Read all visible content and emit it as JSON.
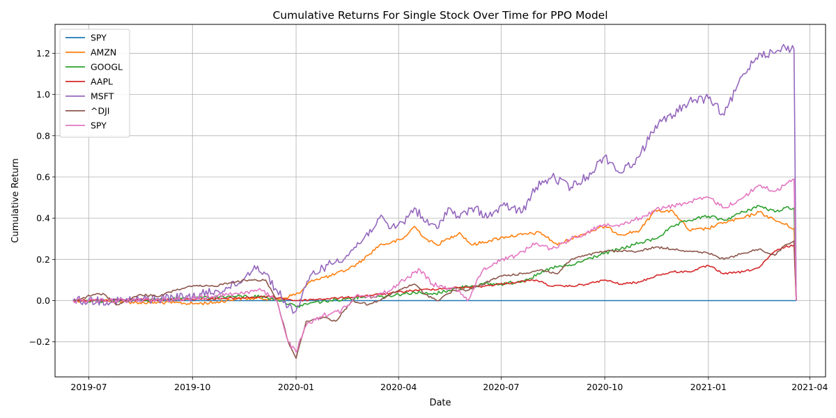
{
  "chart_data": {
    "type": "line",
    "title": "Cumulative Returns For Single Stock Over Time for PPO Model",
    "xlabel": "Date",
    "ylabel": "Cumulative Return",
    "grid": true,
    "legend_position": "top-left",
    "xlim": [
      "2019-06-01",
      "2021-04-15"
    ],
    "ylim": [
      -0.37,
      1.34
    ],
    "x_ticks": [
      "2019-07-01",
      "2019-10-01",
      "2020-01-01",
      "2020-04-01",
      "2020-07-01",
      "2020-10-01",
      "2021-01-01",
      "2021-04-01"
    ],
    "x_tick_labels": [
      "2019-07",
      "2019-10",
      "2020-01",
      "2020-04",
      "2020-07",
      "2020-10",
      "2021-01",
      "2021-04"
    ],
    "y_ticks": [
      -0.2,
      0.0,
      0.2,
      0.4,
      0.6,
      0.8,
      1.0,
      1.2
    ],
    "y_tick_labels": [
      "−0.2",
      "0.0",
      "0.2",
      "0.4",
      "0.6",
      "0.8",
      "1.0",
      "1.2"
    ],
    "series": [
      {
        "name": "SPY",
        "color": "#1f77b4",
        "points": [
          [
            "2019-06-17",
            0.0
          ],
          [
            "2021-03-20",
            0.0
          ]
        ]
      },
      {
        "name": "AMZN",
        "color": "#ff7f0e",
        "points": [
          [
            "2019-06-17",
            0.0
          ],
          [
            "2019-07-15",
            0.0
          ],
          [
            "2019-08-15",
            -0.01
          ],
          [
            "2019-09-15",
            -0.01
          ],
          [
            "2019-10-01",
            -0.015
          ],
          [
            "2019-10-20",
            -0.01
          ],
          [
            "2019-11-10",
            0.01
          ],
          [
            "2019-12-01",
            0.01
          ],
          [
            "2019-12-20",
            0.01
          ],
          [
            "2020-01-05",
            0.04
          ],
          [
            "2020-01-15",
            0.1
          ],
          [
            "2020-02-01",
            0.12
          ],
          [
            "2020-02-15",
            0.15
          ],
          [
            "2020-02-25",
            0.18
          ],
          [
            "2020-03-05",
            0.22
          ],
          [
            "2020-03-15",
            0.27
          ],
          [
            "2020-03-25",
            0.28
          ],
          [
            "2020-04-05",
            0.3
          ],
          [
            "2020-04-15",
            0.36
          ],
          [
            "2020-04-25",
            0.3
          ],
          [
            "2020-05-05",
            0.27
          ],
          [
            "2020-05-15",
            0.3
          ],
          [
            "2020-05-25",
            0.33
          ],
          [
            "2020-06-05",
            0.27
          ],
          [
            "2020-06-20",
            0.29
          ],
          [
            "2020-07-05",
            0.31
          ],
          [
            "2020-07-20",
            0.32
          ],
          [
            "2020-08-05",
            0.33
          ],
          [
            "2020-08-20",
            0.27
          ],
          [
            "2020-09-01",
            0.3
          ],
          [
            "2020-09-15",
            0.33
          ],
          [
            "2020-10-01",
            0.36
          ],
          [
            "2020-10-15",
            0.32
          ],
          [
            "2020-11-01",
            0.34
          ],
          [
            "2020-11-15",
            0.44
          ],
          [
            "2020-12-01",
            0.43
          ],
          [
            "2020-12-15",
            0.34
          ],
          [
            "2021-01-01",
            0.35
          ],
          [
            "2021-01-15",
            0.38
          ],
          [
            "2021-02-01",
            0.4
          ],
          [
            "2021-02-15",
            0.43
          ],
          [
            "2021-03-01",
            0.39
          ],
          [
            "2021-03-10",
            0.37
          ],
          [
            "2021-03-18",
            0.35
          ],
          [
            "2021-03-20",
            0.0
          ]
        ]
      },
      {
        "name": "GOOGL",
        "color": "#2ca02c",
        "points": [
          [
            "2019-06-17",
            0.0
          ],
          [
            "2019-08-01",
            0.0
          ],
          [
            "2019-09-01",
            0.005
          ],
          [
            "2019-10-01",
            0.01
          ],
          [
            "2019-11-01",
            0.02
          ],
          [
            "2019-12-01",
            0.02
          ],
          [
            "2019-12-20",
            0.0
          ],
          [
            "2020-01-01",
            -0.03
          ],
          [
            "2020-01-15",
            -0.01
          ],
          [
            "2020-02-01",
            0.0
          ],
          [
            "2020-02-15",
            0.01
          ],
          [
            "2020-03-01",
            0.02
          ],
          [
            "2020-03-15",
            0.02
          ],
          [
            "2020-04-01",
            0.03
          ],
          [
            "2020-04-15",
            0.04
          ],
          [
            "2020-05-01",
            0.03
          ],
          [
            "2020-05-15",
            0.05
          ],
          [
            "2020-06-01",
            0.07
          ],
          [
            "2020-06-15",
            0.08
          ],
          [
            "2020-07-01",
            0.08
          ],
          [
            "2020-07-15",
            0.09
          ],
          [
            "2020-08-01",
            0.12
          ],
          [
            "2020-08-15",
            0.16
          ],
          [
            "2020-09-01",
            0.17
          ],
          [
            "2020-09-15",
            0.2
          ],
          [
            "2020-10-01",
            0.23
          ],
          [
            "2020-10-15",
            0.25
          ],
          [
            "2020-11-01",
            0.28
          ],
          [
            "2020-11-15",
            0.3
          ],
          [
            "2020-12-01",
            0.36
          ],
          [
            "2020-12-15",
            0.39
          ],
          [
            "2021-01-01",
            0.41
          ],
          [
            "2021-01-15",
            0.39
          ],
          [
            "2021-02-01",
            0.43
          ],
          [
            "2021-02-15",
            0.46
          ],
          [
            "2021-03-01",
            0.43
          ],
          [
            "2021-03-10",
            0.45
          ],
          [
            "2021-03-18",
            0.45
          ],
          [
            "2021-03-20",
            0.0
          ]
        ]
      },
      {
        "name": "AAPL",
        "color": "#d62728",
        "points": [
          [
            "2019-06-17",
            0.0
          ],
          [
            "2019-09-01",
            0.005
          ],
          [
            "2019-11-01",
            0.01
          ],
          [
            "2019-12-10",
            0.02
          ],
          [
            "2020-01-01",
            0.0
          ],
          [
            "2020-01-15",
            0.005
          ],
          [
            "2020-02-15",
            0.015
          ],
          [
            "2020-03-15",
            0.03
          ],
          [
            "2020-04-15",
            0.05
          ],
          [
            "2020-05-15",
            0.06
          ],
          [
            "2020-06-15",
            0.07
          ],
          [
            "2020-07-15",
            0.09
          ],
          [
            "2020-08-01",
            0.1
          ],
          [
            "2020-08-15",
            0.07
          ],
          [
            "2020-09-01",
            0.07
          ],
          [
            "2020-09-15",
            0.08
          ],
          [
            "2020-10-01",
            0.1
          ],
          [
            "2020-10-15",
            0.08
          ],
          [
            "2020-11-01",
            0.09
          ],
          [
            "2020-11-15",
            0.12
          ],
          [
            "2020-12-01",
            0.14
          ],
          [
            "2020-12-15",
            0.14
          ],
          [
            "2021-01-01",
            0.17
          ],
          [
            "2021-01-15",
            0.13
          ],
          [
            "2021-02-01",
            0.14
          ],
          [
            "2021-02-15",
            0.16
          ],
          [
            "2021-03-01",
            0.24
          ],
          [
            "2021-03-10",
            0.26
          ],
          [
            "2021-03-18",
            0.27
          ],
          [
            "2021-03-20",
            0.0
          ]
        ]
      },
      {
        "name": "MSFT",
        "color": "#9467bd",
        "points": [
          [
            "2019-06-17",
            0.0
          ],
          [
            "2019-08-01",
            0.0
          ],
          [
            "2019-09-01",
            0.01
          ],
          [
            "2019-10-01",
            0.02
          ],
          [
            "2019-11-01",
            0.06
          ],
          [
            "2019-11-15",
            0.1
          ],
          [
            "2019-11-25",
            0.17
          ],
          [
            "2019-12-05",
            0.13
          ],
          [
            "2019-12-15",
            0.05
          ],
          [
            "2019-12-25",
            -0.03
          ],
          [
            "2020-01-01",
            -0.05
          ],
          [
            "2020-01-15",
            0.13
          ],
          [
            "2020-02-01",
            0.18
          ],
          [
            "2020-02-15",
            0.22
          ],
          [
            "2020-03-01",
            0.3
          ],
          [
            "2020-03-15",
            0.4
          ],
          [
            "2020-03-25",
            0.35
          ],
          [
            "2020-04-05",
            0.38
          ],
          [
            "2020-04-15",
            0.45
          ],
          [
            "2020-04-25",
            0.38
          ],
          [
            "2020-05-05",
            0.35
          ],
          [
            "2020-05-15",
            0.45
          ],
          [
            "2020-05-25",
            0.4
          ],
          [
            "2020-06-05",
            0.45
          ],
          [
            "2020-06-20",
            0.41
          ],
          [
            "2020-07-05",
            0.46
          ],
          [
            "2020-07-20",
            0.43
          ],
          [
            "2020-08-01",
            0.55
          ],
          [
            "2020-08-15",
            0.6
          ],
          [
            "2020-09-01",
            0.55
          ],
          [
            "2020-09-15",
            0.6
          ],
          [
            "2020-10-01",
            0.7
          ],
          [
            "2020-10-15",
            0.62
          ],
          [
            "2020-11-01",
            0.7
          ],
          [
            "2020-11-15",
            0.85
          ],
          [
            "2020-12-01",
            0.9
          ],
          [
            "2020-12-15",
            0.97
          ],
          [
            "2021-01-01",
            0.98
          ],
          [
            "2021-01-15",
            0.9
          ],
          [
            "2021-02-01",
            1.1
          ],
          [
            "2021-02-15",
            1.2
          ],
          [
            "2021-03-01",
            1.2
          ],
          [
            "2021-03-10",
            1.23
          ],
          [
            "2021-03-18",
            1.22
          ],
          [
            "2021-03-20",
            0.0
          ]
        ]
      },
      {
        "name": "^DJI",
        "color": "#8c564b",
        "points": [
          [
            "2019-06-17",
            0.0
          ],
          [
            "2019-06-25",
            0.01
          ],
          [
            "2019-07-05",
            0.03
          ],
          [
            "2019-07-15",
            0.03
          ],
          [
            "2019-07-25",
            -0.02
          ],
          [
            "2019-08-05",
            0.0
          ],
          [
            "2019-08-15",
            0.03
          ],
          [
            "2019-09-01",
            0.02
          ],
          [
            "2019-09-15",
            0.05
          ],
          [
            "2019-10-01",
            0.07
          ],
          [
            "2019-10-20",
            0.07
          ],
          [
            "2019-11-05",
            0.09
          ],
          [
            "2019-11-20",
            0.1
          ],
          [
            "2019-12-05",
            0.1
          ],
          [
            "2019-12-15",
            0.0
          ],
          [
            "2019-12-25",
            -0.2
          ],
          [
            "2020-01-01",
            -0.28
          ],
          [
            "2020-01-10",
            -0.1
          ],
          [
            "2020-01-25",
            -0.08
          ],
          [
            "2020-02-05",
            -0.1
          ],
          [
            "2020-02-20",
            0.0
          ],
          [
            "2020-03-05",
            -0.02
          ],
          [
            "2020-03-15",
            0.0
          ],
          [
            "2020-03-25",
            0.03
          ],
          [
            "2020-04-05",
            0.06
          ],
          [
            "2020-04-15",
            0.08
          ],
          [
            "2020-04-25",
            0.03
          ],
          [
            "2020-05-05",
            0.0
          ],
          [
            "2020-05-20",
            0.05
          ],
          [
            "2020-06-01",
            0.05
          ],
          [
            "2020-06-15",
            0.08
          ],
          [
            "2020-07-01",
            0.12
          ],
          [
            "2020-07-20",
            0.13
          ],
          [
            "2020-08-05",
            0.15
          ],
          [
            "2020-08-20",
            0.13
          ],
          [
            "2020-09-01",
            0.2
          ],
          [
            "2020-09-15",
            0.22
          ],
          [
            "2020-10-01",
            0.24
          ],
          [
            "2020-10-15",
            0.24
          ],
          [
            "2020-11-01",
            0.24
          ],
          [
            "2020-11-15",
            0.26
          ],
          [
            "2020-12-01",
            0.25
          ],
          [
            "2020-12-15",
            0.24
          ],
          [
            "2021-01-01",
            0.23
          ],
          [
            "2021-01-15",
            0.2
          ],
          [
            "2021-02-01",
            0.23
          ],
          [
            "2021-02-15",
            0.25
          ],
          [
            "2021-03-01",
            0.22
          ],
          [
            "2021-03-10",
            0.27
          ],
          [
            "2021-03-18",
            0.29
          ],
          [
            "2021-03-20",
            0.0
          ]
        ]
      },
      {
        "name": "SPY",
        "color": "#e377c2",
        "points": [
          [
            "2019-06-17",
            0.0
          ],
          [
            "2019-08-01",
            0.0
          ],
          [
            "2019-09-01",
            0.005
          ],
          [
            "2019-10-01",
            0.01
          ],
          [
            "2019-11-01",
            0.03
          ],
          [
            "2019-12-01",
            0.05
          ],
          [
            "2019-12-15",
            0.0
          ],
          [
            "2019-12-25",
            -0.2
          ],
          [
            "2020-01-01",
            -0.25
          ],
          [
            "2020-01-10",
            -0.12
          ],
          [
            "2020-01-25",
            -0.07
          ],
          [
            "2020-02-10",
            -0.05
          ],
          [
            "2020-02-25",
            0.03
          ],
          [
            "2020-03-10",
            0.02
          ],
          [
            "2020-03-25",
            0.05
          ],
          [
            "2020-04-05",
            0.1
          ],
          [
            "2020-04-20",
            0.15
          ],
          [
            "2020-05-01",
            0.08
          ],
          [
            "2020-05-15",
            0.06
          ],
          [
            "2020-05-25",
            0.05
          ],
          [
            "2020-06-01",
            0.0
          ],
          [
            "2020-06-15",
            0.15
          ],
          [
            "2020-07-01",
            0.2
          ],
          [
            "2020-07-15",
            0.22
          ],
          [
            "2020-08-01",
            0.28
          ],
          [
            "2020-08-15",
            0.25
          ],
          [
            "2020-09-01",
            0.3
          ],
          [
            "2020-09-15",
            0.33
          ],
          [
            "2020-10-01",
            0.37
          ],
          [
            "2020-10-15",
            0.37
          ],
          [
            "2020-11-01",
            0.4
          ],
          [
            "2020-11-15",
            0.44
          ],
          [
            "2020-12-01",
            0.46
          ],
          [
            "2020-12-15",
            0.48
          ],
          [
            "2021-01-01",
            0.5
          ],
          [
            "2021-01-15",
            0.45
          ],
          [
            "2021-02-01",
            0.5
          ],
          [
            "2021-02-15",
            0.56
          ],
          [
            "2021-03-01",
            0.53
          ],
          [
            "2021-03-10",
            0.56
          ],
          [
            "2021-03-18",
            0.59
          ],
          [
            "2021-03-20",
            0.0
          ]
        ]
      }
    ]
  }
}
